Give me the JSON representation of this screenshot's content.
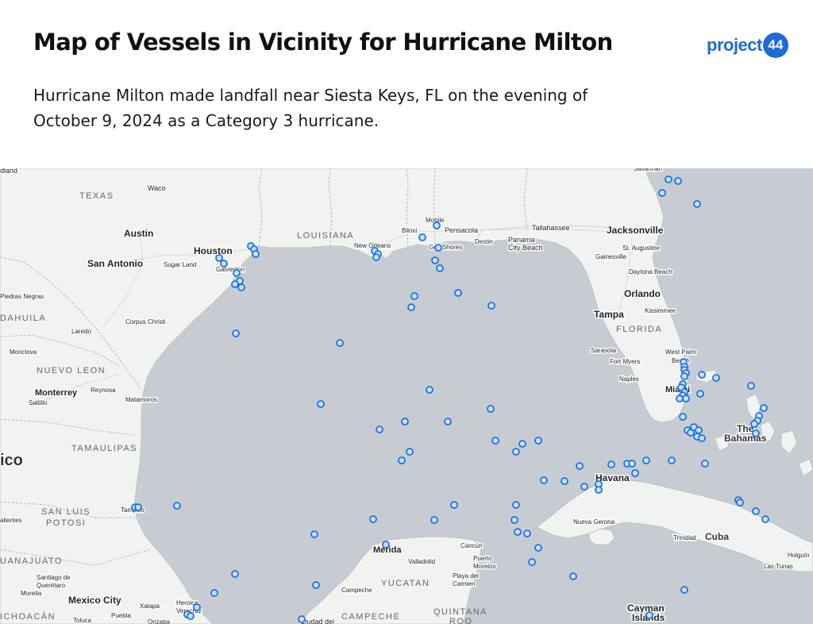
{
  "header": {
    "title": "Map of Vessels in Vicinity for Hurricane Milton",
    "subtitle": "Hurricane Milton made landfall near Siesta Keys, FL on the evening of October 9, 2024 as a Category 3 hurricane.",
    "logo": {
      "text": "project",
      "badge": "44"
    }
  },
  "map": {
    "colors": {
      "water": "#c6ccd1",
      "land": "#f2f2f0",
      "marker": "#1a73e8",
      "marker_fill": "#cfe0fa"
    },
    "region_labels": [
      "TEXAS",
      "LOUISIANA",
      "FLORIDA",
      "NUEVO LEON",
      "TAMAULIPAS",
      "SAN LUIS",
      "POTOSI",
      "UANAJUATO",
      "YUCATAN",
      "QUINTANA",
      "ROO",
      "CAMPECHE",
      "DAHUILA",
      "ICHOACÁN"
    ],
    "country_labels": [
      "ico",
      "Cuba",
      "The",
      "Bahamas"
    ],
    "city_labels": [
      "Houston",
      "San Antonio",
      "Austin",
      "Waco",
      "New Orleans",
      "Jacksonville",
      "Orlando",
      "Tampa",
      "Miami",
      "Havana",
      "Mexico City",
      "Mérida",
      "Monterrey",
      "Tallahassee",
      "Mobile",
      "Biloxi",
      "Pensacola",
      "Gulf Shores",
      "Destin",
      "Panama",
      "City Beach",
      "St. Augustine",
      "Gainesville",
      "Daytona Beach",
      "Kissimmee",
      "Sarasota",
      "Fort Myers",
      "Naples",
      "West Palm",
      "Beach",
      "Corpus Christi",
      "Laredo",
      "Galveston",
      "Sugar Land",
      "Piedras Negras",
      "Monclova",
      "Reynosa",
      "Matamoros",
      "Saltillo",
      "Tampico",
      "alientes",
      "Santiago de",
      "Querétaro",
      "Morelia",
      "Toluca",
      "Puebla",
      "Xalapa",
      "Heroica",
      "Veracruz",
      "Orizaba",
      "Campeche",
      "Valladolid",
      "Cancún",
      "Puerto",
      "Morelos",
      "Playa del",
      "Carmen",
      "Nueva Gerona",
      "Trinidad",
      "Holguín",
      "Las Tunas",
      "Cayman",
      "Islands",
      "Savannah",
      "dland",
      "Ciudad del"
    ]
  }
}
